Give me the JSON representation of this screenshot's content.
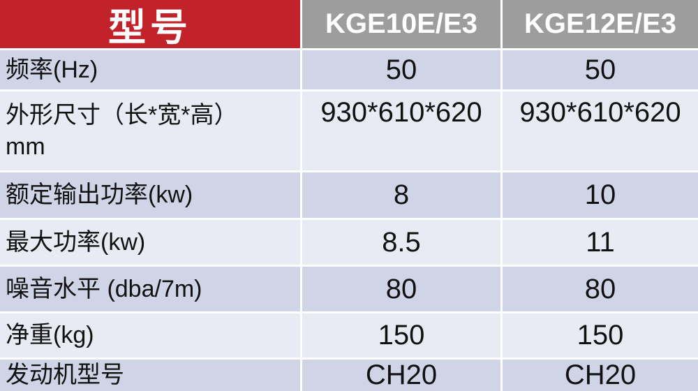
{
  "table": {
    "header": {
      "col1": "型号",
      "col2": "KGE10E/E3",
      "col3": "KGE12E/E3"
    },
    "rows": [
      {
        "label": "频率(Hz)",
        "v1": "50",
        "v2": "50"
      },
      {
        "label": "外形尺寸（长*宽*高）\nmm",
        "v1": "930*610*620",
        "v2": "930*610*620"
      },
      {
        "label": "额定输出功率(kw)",
        "v1": "8",
        "v2": "10"
      },
      {
        "label": "最大功率(kw)",
        "v1": "8.5",
        "v2": "11"
      },
      {
        "label": "噪音水平 (dba/7m)",
        "v1": "80",
        "v2": "80"
      },
      {
        "label": "净重(kg)",
        "v1": "150",
        "v2": "150"
      },
      {
        "label": "发动机型号",
        "v1": "CH20",
        "v2": "CH20"
      }
    ],
    "colors": {
      "header_red": "#c2222a",
      "header_gray": "#9d9d9d",
      "row_dark": "#cfd4e7",
      "row_light": "#e9ebf4",
      "gridline": "#ffffff",
      "header_text": "#ffffff",
      "body_text": "#111111"
    }
  }
}
